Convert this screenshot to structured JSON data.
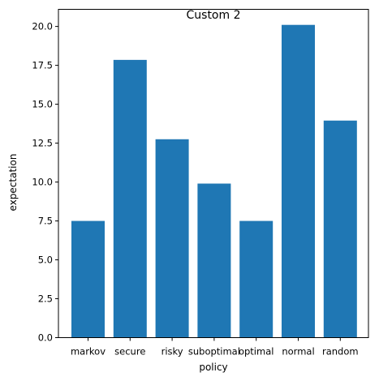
{
  "chart_data": {
    "type": "bar",
    "title": "Custom 2",
    "xlabel": "policy",
    "ylabel": "expectation",
    "categories": [
      "markov",
      "secure",
      "risky",
      "suboptimal",
      "optimal",
      "normal",
      "random"
    ],
    "values": [
      7.5,
      17.85,
      12.75,
      9.9,
      7.5,
      20.1,
      13.95
    ],
    "ylim": [
      0,
      21.1
    ],
    "yticks": [
      "0.0",
      "2.5",
      "5.0",
      "7.5",
      "10.0",
      "12.5",
      "15.0",
      "17.5",
      "20.0"
    ],
    "bar_color": "#1f77b4",
    "grid": false
  }
}
